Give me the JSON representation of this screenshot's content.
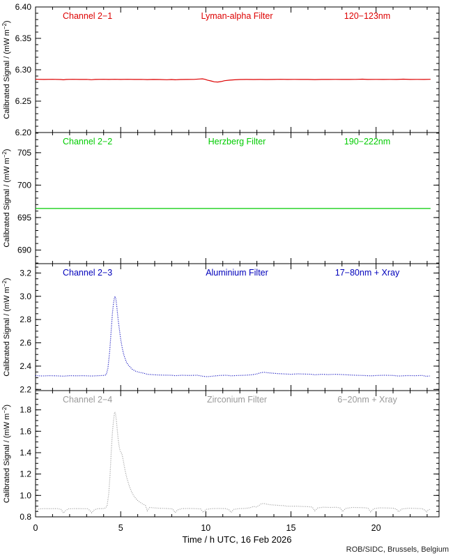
{
  "chart_data": {
    "type": "line",
    "title": "",
    "xlabel": "Time / h UTC, 16 Feb 2026",
    "credit": "ROB/SIDC, Brussels, Belgium",
    "x_range": [
      0,
      23.7
    ],
    "x_major_ticks": [
      0,
      5,
      10,
      15,
      20
    ],
    "x_minor_step": 1,
    "grid": "off",
    "ylabel": {
      "pre": "Calibrated Signal / (mW m",
      "sup": "−2",
      "post": ")"
    },
    "colors": {
      "axis": "#000000",
      "red": "#dd0000",
      "green": "#00cc00",
      "blue": "#0000bb",
      "grey": "#9a9a9a",
      "footer": "#222222"
    },
    "panels": [
      {
        "channel": "Channel 2−1",
        "filter": "Lyman-alpha Filter",
        "band": "120−123nm",
        "color": "#dd0000",
        "line_style": "solid",
        "y_range": [
          6.2,
          6.4
        ],
        "y_major_ticks": [
          6.2,
          6.25,
          6.3,
          6.35,
          6.4
        ],
        "y_minor_step": 0.01,
        "y_decimals": 2,
        "points": [
          [
            0,
            6.2848
          ],
          [
            0.5,
            6.2846
          ],
          [
            1.0,
            6.2848
          ],
          [
            1.5,
            6.2844
          ],
          [
            1.64,
            6.284
          ],
          [
            1.8,
            6.2846
          ],
          [
            2.2,
            6.2848
          ],
          [
            2.6,
            6.2845
          ],
          [
            3.0,
            6.2847
          ],
          [
            3.28,
            6.2841
          ],
          [
            3.5,
            6.2846
          ],
          [
            4.0,
            6.2848
          ],
          [
            4.3,
            6.2845
          ],
          [
            4.65,
            6.2848
          ],
          [
            5.0,
            6.2846
          ],
          [
            5.4,
            6.2848
          ],
          [
            5.8,
            6.2845
          ],
          [
            6.2,
            6.2847
          ],
          [
            6.56,
            6.2843
          ],
          [
            6.9,
            6.2846
          ],
          [
            7.3,
            6.2844
          ],
          [
            7.7,
            6.2841
          ],
          [
            8.0,
            6.2844
          ],
          [
            8.2,
            6.284
          ],
          [
            8.5,
            6.2844
          ],
          [
            8.9,
            6.2846
          ],
          [
            9.3,
            6.2847
          ],
          [
            9.6,
            6.2852
          ],
          [
            9.8,
            6.2856
          ],
          [
            9.95,
            6.2848
          ],
          [
            10.1,
            6.2834
          ],
          [
            10.3,
            6.2822
          ],
          [
            10.5,
            6.2808
          ],
          [
            10.7,
            6.2805
          ],
          [
            10.9,
            6.2812
          ],
          [
            11.1,
            6.2826
          ],
          [
            11.4,
            6.2834
          ],
          [
            11.7,
            6.284
          ],
          [
            12.0,
            6.2844
          ],
          [
            12.4,
            6.2846
          ],
          [
            12.8,
            6.2844
          ],
          [
            13.2,
            6.2846
          ],
          [
            13.6,
            6.2844
          ],
          [
            14.0,
            6.2846
          ],
          [
            14.4,
            6.2848
          ],
          [
            14.8,
            6.2845
          ],
          [
            15.2,
            6.2847
          ],
          [
            15.6,
            6.2845
          ],
          [
            16.0,
            6.2846
          ],
          [
            16.4,
            6.2843
          ],
          [
            16.8,
            6.2846
          ],
          [
            17.2,
            6.2845
          ],
          [
            17.6,
            6.2847
          ],
          [
            18.0,
            6.2845
          ],
          [
            18.4,
            6.2846
          ],
          [
            18.8,
            6.2847
          ],
          [
            19.2,
            6.285
          ],
          [
            19.5,
            6.2846
          ],
          [
            20.0,
            6.2847
          ],
          [
            20.4,
            6.2845
          ],
          [
            20.8,
            6.2847
          ],
          [
            21.2,
            6.2846
          ],
          [
            21.6,
            6.285
          ],
          [
            22.0,
            6.2846
          ],
          [
            22.4,
            6.2847
          ],
          [
            22.8,
            6.2846
          ],
          [
            23.2,
            6.2848
          ]
        ]
      },
      {
        "channel": "Channel 2−2",
        "filter": "Herzberg Filter",
        "band": "190−222nm",
        "color": "#00cc00",
        "line_style": "solid",
        "y_range": [
          687.9,
          708.1
        ],
        "y_major_ticks": [
          690,
          695,
          700,
          705
        ],
        "y_minor_step": 1,
        "y_decimals": 0,
        "points": [
          [
            0,
            696.4
          ],
          [
            2,
            696.4
          ],
          [
            4,
            696.4
          ],
          [
            6,
            696.4
          ],
          [
            8,
            696.4
          ],
          [
            10,
            696.4
          ],
          [
            12,
            696.4
          ],
          [
            14,
            696.4
          ],
          [
            16,
            696.4
          ],
          [
            18,
            696.4
          ],
          [
            20,
            696.4
          ],
          [
            22,
            696.4
          ],
          [
            23.2,
            696.4
          ]
        ]
      },
      {
        "channel": "Channel 2−3",
        "filter": "Aluminium Filter",
        "band": "17−80nm + Xray",
        "color": "#0000bb",
        "line_style": "dotted",
        "y_range": [
          2.19,
          3.28
        ],
        "y_major_ticks": [
          2.2,
          2.4,
          2.6,
          2.8,
          3.0,
          3.2
        ],
        "y_minor_step": 0.05,
        "y_decimals": 1,
        "points": [
          [
            0,
            2.318
          ],
          [
            0.4,
            2.316
          ],
          [
            0.8,
            2.318
          ],
          [
            1.2,
            2.317
          ],
          [
            1.64,
            2.314
          ],
          [
            2.0,
            2.318
          ],
          [
            2.4,
            2.317
          ],
          [
            2.8,
            2.318
          ],
          [
            3.28,
            2.315
          ],
          [
            3.7,
            2.318
          ],
          [
            4.0,
            2.32
          ],
          [
            4.15,
            2.326
          ],
          [
            4.25,
            2.38
          ],
          [
            4.35,
            2.52
          ],
          [
            4.45,
            2.72
          ],
          [
            4.52,
            2.86
          ],
          [
            4.58,
            2.94
          ],
          [
            4.63,
            2.985
          ],
          [
            4.67,
            3.0
          ],
          [
            4.72,
            2.975
          ],
          [
            4.78,
            2.9
          ],
          [
            4.85,
            2.8
          ],
          [
            4.92,
            2.72
          ],
          [
            5.0,
            2.63
          ],
          [
            5.1,
            2.55
          ],
          [
            5.2,
            2.49
          ],
          [
            5.35,
            2.43
          ],
          [
            5.5,
            2.4
          ],
          [
            5.7,
            2.37
          ],
          [
            5.9,
            2.355
          ],
          [
            6.1,
            2.347
          ],
          [
            6.35,
            2.34
          ],
          [
            6.56,
            2.33
          ],
          [
            6.8,
            2.328
          ],
          [
            7.1,
            2.325
          ],
          [
            7.5,
            2.323
          ],
          [
            8.0,
            2.322
          ],
          [
            8.2,
            2.318
          ],
          [
            8.6,
            2.322
          ],
          [
            9.0,
            2.32
          ],
          [
            9.5,
            2.322
          ],
          [
            9.84,
            2.313
          ],
          [
            10.1,
            2.31
          ],
          [
            10.4,
            2.314
          ],
          [
            10.8,
            2.32
          ],
          [
            11.2,
            2.322
          ],
          [
            11.48,
            2.317
          ],
          [
            11.9,
            2.32
          ],
          [
            12.3,
            2.322
          ],
          [
            12.7,
            2.326
          ],
          [
            13.0,
            2.333
          ],
          [
            13.2,
            2.342
          ],
          [
            13.4,
            2.348
          ],
          [
            13.6,
            2.344
          ],
          [
            13.9,
            2.34
          ],
          [
            14.2,
            2.336
          ],
          [
            14.6,
            2.333
          ],
          [
            15.0,
            2.33
          ],
          [
            15.4,
            2.334
          ],
          [
            15.8,
            2.332
          ],
          [
            16.2,
            2.33
          ],
          [
            16.4,
            2.326
          ],
          [
            16.8,
            2.33
          ],
          [
            17.2,
            2.328
          ],
          [
            17.6,
            2.33
          ],
          [
            18.0,
            2.328
          ],
          [
            18.4,
            2.325
          ],
          [
            18.8,
            2.322
          ],
          [
            19.2,
            2.32
          ],
          [
            19.68,
            2.317
          ],
          [
            20.1,
            2.32
          ],
          [
            20.5,
            2.322
          ],
          [
            21.0,
            2.32
          ],
          [
            21.32,
            2.315
          ],
          [
            21.8,
            2.319
          ],
          [
            22.3,
            2.318
          ],
          [
            22.7,
            2.32
          ],
          [
            22.96,
            2.313
          ],
          [
            23.15,
            2.316
          ]
        ]
      },
      {
        "channel": "Channel 2−4",
        "filter": "Zirconium Filter",
        "band": "6−20nm + Xray",
        "color": "#9a9a9a",
        "line_style": "dotted",
        "y_range": [
          0.8,
          1.98
        ],
        "y_major_ticks": [
          0.8,
          1.0,
          1.2,
          1.4,
          1.6,
          1.8
        ],
        "y_minor_step": 0.05,
        "y_decimals": 1,
        "points": [
          [
            0,
            0.87
          ],
          [
            0.08,
            0.858
          ],
          [
            0.2,
            0.874
          ],
          [
            0.5,
            0.877
          ],
          [
            0.9,
            0.876
          ],
          [
            1.3,
            0.877
          ],
          [
            1.5,
            0.87
          ],
          [
            1.64,
            0.836
          ],
          [
            1.78,
            0.862
          ],
          [
            1.95,
            0.875
          ],
          [
            2.3,
            0.877
          ],
          [
            2.7,
            0.876
          ],
          [
            3.05,
            0.876
          ],
          [
            3.18,
            0.862
          ],
          [
            3.3,
            0.838
          ],
          [
            3.45,
            0.866
          ],
          [
            3.65,
            0.876
          ],
          [
            3.95,
            0.877
          ],
          [
            4.1,
            0.882
          ],
          [
            4.2,
            0.9
          ],
          [
            4.3,
            1.02
          ],
          [
            4.38,
            1.2
          ],
          [
            4.45,
            1.42
          ],
          [
            4.52,
            1.6
          ],
          [
            4.58,
            1.7
          ],
          [
            4.63,
            1.765
          ],
          [
            4.66,
            1.78
          ],
          [
            4.7,
            1.76
          ],
          [
            4.75,
            1.7
          ],
          [
            4.8,
            1.61
          ],
          [
            4.85,
            1.53
          ],
          [
            4.9,
            1.47
          ],
          [
            4.95,
            1.43
          ],
          [
            5.0,
            1.405
          ],
          [
            5.07,
            1.39
          ],
          [
            5.15,
            1.33
          ],
          [
            5.25,
            1.24
          ],
          [
            5.35,
            1.17
          ],
          [
            5.5,
            1.09
          ],
          [
            5.65,
            1.03
          ],
          [
            5.8,
            0.99
          ],
          [
            5.95,
            0.96
          ],
          [
            6.1,
            0.94
          ],
          [
            6.3,
            0.92
          ],
          [
            6.45,
            0.908
          ],
          [
            6.56,
            0.857
          ],
          [
            6.7,
            0.888
          ],
          [
            6.95,
            0.884
          ],
          [
            7.3,
            0.88
          ],
          [
            7.7,
            0.878
          ],
          [
            8.05,
            0.874
          ],
          [
            8.2,
            0.84
          ],
          [
            8.35,
            0.866
          ],
          [
            8.6,
            0.877
          ],
          [
            9.0,
            0.878
          ],
          [
            9.4,
            0.877
          ],
          [
            9.7,
            0.874
          ],
          [
            9.84,
            0.841
          ],
          [
            10.0,
            0.87
          ],
          [
            10.35,
            0.877
          ],
          [
            10.75,
            0.878
          ],
          [
            11.15,
            0.877
          ],
          [
            11.35,
            0.868
          ],
          [
            11.48,
            0.842
          ],
          [
            11.64,
            0.87
          ],
          [
            11.95,
            0.877
          ],
          [
            12.3,
            0.879
          ],
          [
            12.6,
            0.885
          ],
          [
            12.8,
            0.897
          ],
          [
            12.95,
            0.892
          ],
          [
            13.1,
            0.903
          ],
          [
            13.25,
            0.921
          ],
          [
            13.4,
            0.925
          ],
          [
            13.6,
            0.918
          ],
          [
            13.8,
            0.913
          ],
          [
            14.05,
            0.91
          ],
          [
            14.3,
            0.907
          ],
          [
            14.55,
            0.905
          ],
          [
            14.76,
            0.9
          ],
          [
            15.0,
            0.899
          ],
          [
            15.3,
            0.9
          ],
          [
            15.65,
            0.897
          ],
          [
            16.0,
            0.895
          ],
          [
            16.25,
            0.892
          ],
          [
            16.4,
            0.856
          ],
          [
            16.58,
            0.884
          ],
          [
            16.9,
            0.89
          ],
          [
            17.3,
            0.888
          ],
          [
            17.7,
            0.889
          ],
          [
            17.9,
            0.882
          ],
          [
            18.04,
            0.849
          ],
          [
            18.2,
            0.878
          ],
          [
            18.6,
            0.888
          ],
          [
            19.0,
            0.887
          ],
          [
            19.4,
            0.885
          ],
          [
            19.55,
            0.878
          ],
          [
            19.68,
            0.846
          ],
          [
            19.85,
            0.875
          ],
          [
            20.2,
            0.884
          ],
          [
            20.6,
            0.883
          ],
          [
            21.0,
            0.881
          ],
          [
            21.2,
            0.872
          ],
          [
            21.32,
            0.846
          ],
          [
            21.5,
            0.873
          ],
          [
            21.9,
            0.881
          ],
          [
            22.3,
            0.879
          ],
          [
            22.7,
            0.877
          ],
          [
            22.9,
            0.86
          ],
          [
            22.96,
            0.843
          ],
          [
            23.05,
            0.862
          ],
          [
            23.15,
            0.87
          ]
        ]
      }
    ]
  }
}
